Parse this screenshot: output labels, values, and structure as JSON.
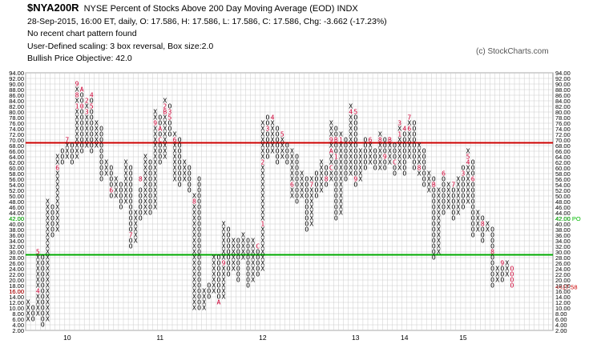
{
  "header": {
    "symbol": "$NYA200R",
    "title": "NYSE Percent of Stocks Above 200 Day Moving Average (EOD)  INDX",
    "line2": "28-Sep-2015, 16:00 ET, daily, O: 17.586, H: 17.586, L: 17.586, C: 17.586, Chg: -3.662 (-17.23%)",
    "line3": "No recent chart pattern found",
    "line4": "User-Defined scaling: 3 box reversal, Box size:2.0",
    "line5": "Bullish Price Objective: 42.0",
    "copyright": "(c) StockCharts.com"
  },
  "colors": {
    "resistance": "#cc0000",
    "support": "#00aa00",
    "grid": "#cccccc",
    "month_marker": "#cc0033",
    "objective_label": "#00bb00",
    "last_price_label": "#cc0000"
  },
  "chart_data": {
    "type": "point-and-figure",
    "box_size": 2.0,
    "reversal": 3,
    "ylim": [
      2,
      94
    ],
    "y_ticks": [
      "94.00",
      "92.00",
      "90.00",
      "88.00",
      "86.00",
      "84.00",
      "82.00",
      "80.00",
      "78.00",
      "76.00",
      "74.00",
      "72.00",
      "70.00",
      "68.00",
      "66.00",
      "64.00",
      "62.00",
      "60.00",
      "58.00",
      "56.00",
      "54.00",
      "52.00",
      "50.00",
      "48.00",
      "46.00",
      "44.00",
      "42.00",
      "40.00",
      "38.00",
      "36.00",
      "34.00",
      "32.00",
      "30.00",
      "28.00",
      "26.00",
      "24.00",
      "22.00",
      "20.00",
      "18.00",
      "16.00",
      "14.00",
      "12.00",
      "10.00",
      "8.00",
      "6.00",
      "4.00",
      "2.00"
    ],
    "x_labels": [
      {
        "label": "10",
        "col": 8
      },
      {
        "label": "11",
        "col": 27
      },
      {
        "label": "12",
        "col": 48
      },
      {
        "label": "13",
        "col": 67
      },
      {
        "label": "14",
        "col": 77
      },
      {
        "label": "15",
        "col": 89
      }
    ],
    "resistance_level": 69,
    "support_level": 29,
    "objective": {
      "value": 42.0,
      "label": "42.00 PO"
    },
    "last_price": {
      "value": 17.58,
      "label": "<<17.58"
    },
    "columns": [
      {
        "t": "X",
        "lo": 6,
        "hi": 12
      },
      {
        "t": "O",
        "lo": 6,
        "hi": 10
      },
      {
        "t": "X",
        "lo": 8,
        "hi": 30,
        "m": [
          {
            "v": 16,
            "c": "4"
          },
          {
            "v": 30,
            "c": "5"
          }
        ]
      },
      {
        "t": "O",
        "lo": 4,
        "hi": 28
      },
      {
        "t": "X",
        "lo": 6,
        "hi": 48
      },
      {
        "t": "O",
        "lo": 36,
        "hi": 46
      },
      {
        "t": "X",
        "lo": 38,
        "hi": 64,
        "m": [
          {
            "v": 60,
            "c": "6"
          }
        ]
      },
      {
        "t": "O",
        "lo": 62,
        "hi": 66
      },
      {
        "t": "X",
        "lo": 64,
        "hi": 68,
        "m": [
          {
            "v": 70,
            "c": "7"
          }
        ]
      },
      {
        "t": "O",
        "lo": 62,
        "hi": 68
      },
      {
        "t": "X",
        "lo": 64,
        "hi": 90,
        "m": [
          {
            "v": 82,
            "c": "1"
          },
          {
            "v": 86,
            "c": "8"
          },
          {
            "v": 90,
            "c": "9"
          }
        ]
      },
      {
        "t": "O",
        "lo": 66,
        "hi": 88,
        "m": [
          {
            "v": 88,
            "c": "A"
          },
          {
            "v": 82,
            "c": "0"
          }
        ]
      },
      {
        "t": "X",
        "lo": 68,
        "hi": 82,
        "m": [
          {
            "v": 84,
            "c": "2"
          },
          {
            "v": 80,
            "c": "3"
          }
        ]
      },
      {
        "t": "O",
        "lo": 66,
        "hi": 84,
        "m": [
          {
            "v": 86,
            "c": "4"
          },
          {
            "v": 82,
            "c": "5"
          }
        ]
      },
      {
        "t": "X",
        "lo": 68,
        "hi": 76
      },
      {
        "t": "O",
        "lo": 56,
        "hi": 74
      },
      {
        "t": "X",
        "lo": 58,
        "hi": 62
      },
      {
        "t": "O",
        "lo": 50,
        "hi": 60,
        "m": [
          {
            "v": 52,
            "c": "6"
          }
        ]
      },
      {
        "t": "X",
        "lo": 50,
        "hi": 56
      },
      {
        "t": "O",
        "lo": 46,
        "hi": 54
      },
      {
        "t": "X",
        "lo": 48,
        "hi": 62
      },
      {
        "t": "O",
        "lo": 32,
        "hi": 60,
        "m": [
          {
            "v": 36,
            "c": "7"
          }
        ]
      },
      {
        "t": "X",
        "lo": 34,
        "hi": 44
      },
      {
        "t": "O",
        "lo": 42,
        "hi": 52,
        "m": [
          {
            "v": 56,
            "c": "8"
          }
        ]
      },
      {
        "t": "X",
        "lo": 44,
        "hi": 64
      },
      {
        "t": "O",
        "lo": 44,
        "hi": 62
      },
      {
        "t": "X",
        "lo": 46,
        "hi": 80,
        "m": [
          {
            "v": 76,
            "c": "9"
          }
        ]
      },
      {
        "t": "O",
        "lo": 62,
        "hi": 78,
        "m": [
          {
            "v": 74,
            "c": "A"
          },
          {
            "v": 70,
            "c": "C"
          }
        ]
      },
      {
        "t": "X",
        "lo": 64,
        "hi": 84,
        "m": [
          {
            "v": 80,
            "c": "B"
          },
          {
            "v": 82,
            "c": "2"
          }
        ]
      },
      {
        "t": "O",
        "lo": 72,
        "hi": 82,
        "m": [
          {
            "v": 80,
            "c": "3"
          },
          {
            "v": 78,
            "c": "5"
          }
        ]
      },
      {
        "t": "X",
        "lo": 56,
        "hi": 72,
        "m": [
          {
            "v": 70,
            "c": "6"
          }
        ]
      },
      {
        "t": "O",
        "lo": 54,
        "hi": 70
      },
      {
        "t": "X",
        "lo": 56,
        "hi": 62
      },
      {
        "t": "O",
        "lo": 52,
        "hi": 60
      },
      {
        "t": "X",
        "lo": 10,
        "hi": 50,
        "m": [
          {
            "v": 48,
            "c": "8"
          }
        ]
      },
      {
        "t": "O",
        "lo": 10,
        "hi": 56
      },
      {
        "t": "X",
        "lo": 10,
        "hi": 16
      },
      {
        "t": "O",
        "lo": 14,
        "hi": 18
      },
      {
        "t": "X",
        "lo": 16,
        "hi": 28
      },
      {
        "t": "O",
        "lo": 14,
        "hi": 28,
        "m": [
          {
            "v": 12,
            "c": "A"
          }
        ]
      },
      {
        "t": "X",
        "lo": 14,
        "hi": 40,
        "m": [
          {
            "v": 26,
            "c": "9"
          }
        ]
      },
      {
        "t": "O",
        "lo": 22,
        "hi": 38
      },
      {
        "t": "X",
        "lo": 24,
        "hi": 34
      },
      {
        "t": "O",
        "lo": 20,
        "hi": 34
      },
      {
        "t": "X",
        "lo": 28,
        "hi": 36
      },
      {
        "t": "O",
        "lo": 18,
        "hi": 34
      },
      {
        "t": "X",
        "lo": 20,
        "hi": 34
      },
      {
        "t": "O",
        "lo": 22,
        "hi": 32,
        "m": [
          {
            "v": 32,
            "c": "C"
          }
        ]
      },
      {
        "t": "X",
        "lo": 24,
        "hi": 76,
        "m": [
          {
            "v": 40,
            "c": "1"
          },
          {
            "v": 62,
            "c": "2"
          }
        ]
      },
      {
        "t": "O",
        "lo": 64,
        "hi": 78,
        "m": [
          {
            "v": 74,
            "c": "3"
          }
        ]
      },
      {
        "t": "X",
        "lo": 66,
        "hi": 76,
        "m": [
          {
            "v": 78,
            "c": "4"
          }
        ]
      },
      {
        "t": "O",
        "lo": 62,
        "hi": 74
      },
      {
        "t": "X",
        "lo": 64,
        "hi": 70,
        "m": [
          {
            "v": 72,
            "c": "5"
          }
        ]
      },
      {
        "t": "O",
        "lo": 62,
        "hi": 68
      },
      {
        "t": "X",
        "lo": 50,
        "hi": 66,
        "m": [
          {
            "v": 54,
            "c": "6"
          }
        ]
      },
      {
        "t": "O",
        "lo": 48,
        "hi": 64
      },
      {
        "t": "X",
        "lo": 50,
        "hi": 58
      },
      {
        "t": "O",
        "lo": 38,
        "hi": 56
      },
      {
        "t": "X",
        "lo": 40,
        "hi": 56,
        "m": [
          {
            "v": 54,
            "c": "7"
          }
        ]
      },
      {
        "t": "O",
        "lo": 50,
        "hi": 58
      },
      {
        "t": "X",
        "lo": 52,
        "hi": 62
      },
      {
        "t": "O",
        "lo": 54,
        "hi": 60,
        "m": [
          {
            "v": 56,
            "c": "8"
          }
        ]
      },
      {
        "t": "X",
        "lo": 56,
        "hi": 76,
        "m": [
          {
            "v": 70,
            "c": "9"
          },
          {
            "v": 66,
            "c": "A"
          },
          {
            "v": 60,
            "c": "C"
          }
        ]
      },
      {
        "t": "O",
        "lo": 42,
        "hi": 74,
        "m": [
          {
            "v": 70,
            "c": "B"
          },
          {
            "v": 64,
            "c": "1"
          }
        ]
      },
      {
        "t": "X",
        "lo": 44,
        "hi": 72,
        "m": [
          {
            "v": 70,
            "c": "1"
          }
        ]
      },
      {
        "t": "O",
        "lo": 56,
        "hi": 70
      },
      {
        "t": "X",
        "lo": 58,
        "hi": 82,
        "m": [
          {
            "v": 80,
            "c": "4"
          }
        ]
      },
      {
        "t": "O",
        "lo": 54,
        "hi": 80,
        "m": [
          {
            "v": 80,
            "c": "5"
          },
          {
            "v": 56,
            "c": "9"
          }
        ]
      },
      {
        "t": "X",
        "lo": 56,
        "hi": 66
      },
      {
        "t": "O",
        "lo": 60,
        "hi": 70
      },
      {
        "t": "X",
        "lo": 62,
        "hi": 68,
        "m": [
          {
            "v": 70,
            "c": "6"
          }
        ]
      },
      {
        "t": "O",
        "lo": 60,
        "hi": 66
      },
      {
        "t": "X",
        "lo": 60,
        "hi": 72,
        "m": [
          {
            "v": 70,
            "c": "8"
          }
        ]
      },
      {
        "t": "O",
        "lo": 60,
        "hi": 70,
        "m": [
          {
            "v": 64,
            "c": "9"
          }
        ]
      },
      {
        "t": "X",
        "lo": 62,
        "hi": 70,
        "m": [
          {
            "v": 70,
            "c": "B"
          }
        ]
      },
      {
        "t": "O",
        "lo": 58,
        "hi": 68,
        "m": [
          {
            "v": 62,
            "c": "C"
          }
        ]
      },
      {
        "t": "X",
        "lo": 60,
        "hi": 74,
        "m": [
          {
            "v": 72,
            "c": "1"
          },
          {
            "v": 76,
            "c": "3"
          }
        ]
      },
      {
        "t": "O",
        "lo": 58,
        "hi": 74,
        "m": [
          {
            "v": 74,
            "c": "4"
          }
        ]
      },
      {
        "t": "X",
        "lo": 64,
        "hi": 78,
        "m": [
          {
            "v": 78,
            "c": "7"
          },
          {
            "v": 74,
            "c": "6"
          }
        ]
      },
      {
        "t": "O",
        "lo": 60,
        "hi": 76
      },
      {
        "t": "X",
        "lo": 58,
        "hi": 68,
        "m": [
          {
            "v": 60,
            "c": "8"
          }
        ]
      },
      {
        "t": "O",
        "lo": 54,
        "hi": 66
      },
      {
        "t": "X",
        "lo": 52,
        "hi": 58
      },
      {
        "t": "O",
        "lo": 28,
        "hi": 56,
        "m": [
          {
            "v": 54,
            "c": "B"
          }
        ]
      },
      {
        "t": "X",
        "lo": 30,
        "hi": 52
      },
      {
        "t": "O",
        "lo": 44,
        "hi": 56,
        "m": [
          {
            "v": 58,
            "c": "6"
          }
        ]
      },
      {
        "t": "X",
        "lo": 46,
        "hi": 54
      },
      {
        "t": "O",
        "lo": 42,
        "hi": 54,
        "m": [
          {
            "v": 54,
            "c": "7"
          }
        ]
      },
      {
        "t": "X",
        "lo": 44,
        "hi": 56
      },
      {
        "t": "O",
        "lo": 46,
        "hi": 60,
        "m": [
          {
            "v": 58,
            "c": "3"
          }
        ]
      },
      {
        "t": "X",
        "lo": 48,
        "hi": 66,
        "m": [
          {
            "v": 62,
            "c": "4"
          },
          {
            "v": 64,
            "c": "5"
          }
        ]
      },
      {
        "t": "O",
        "lo": 36,
        "hi": 62,
        "m": [
          {
            "v": 56,
            "c": "6"
          }
        ]
      },
      {
        "t": "X",
        "lo": 38,
        "hi": 44
      },
      {
        "t": "O",
        "lo": 34,
        "hi": 42,
        "m": [
          {
            "v": 40,
            "c": "8"
          }
        ]
      },
      {
        "t": "X",
        "lo": 38,
        "hi": 40
      },
      {
        "t": "O",
        "lo": 18,
        "hi": 38,
        "m": [
          {
            "v": 30,
            "c": "8"
          }
        ]
      },
      {
        "t": "X",
        "lo": 20,
        "hi": 24
      },
      {
        "t": "O",
        "lo": 20,
        "hi": 24,
        "m": [
          {
            "v": 26,
            "c": "9"
          }
        ]
      },
      {
        "t": "X",
        "lo": 22,
        "hi": 26
      },
      {
        "t": "O",
        "lo": 18,
        "hi": 24,
        "m": [
          {
            "v": 24,
            "c": "O"
          },
          {
            "v": 22,
            "c": "O"
          },
          {
            "v": 20,
            "c": "O"
          },
          {
            "v": 18,
            "c": "O"
          }
        ]
      }
    ]
  }
}
